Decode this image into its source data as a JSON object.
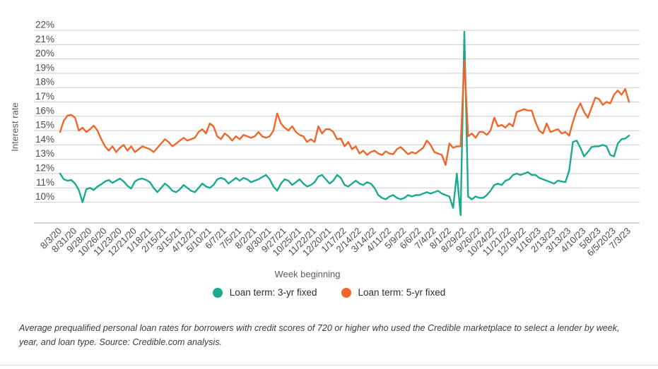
{
  "chart_data": {
    "type": "line",
    "title": "",
    "xlabel": "Week beginning",
    "ylabel": "Interest rate",
    "ylim": [
      10,
      22
    ],
    "y_tick_suffix": "%",
    "grid": "horizontal",
    "legend_position": "bottom",
    "x_tick_interval_weeks": 4,
    "x_tick_labels": [
      "8/3/20",
      "8/31/20",
      "9/28/20",
      "10/26/20",
      "11/23/20",
      "12/21/20",
      "1/18/21",
      "2/15/21",
      "3/15/21",
      "4/12/21",
      "5/10/21",
      "6/7/21",
      "7/5/21",
      "8/2/21",
      "8/30/21",
      "9/27/21",
      "10/25/21",
      "11/22/21",
      "12/20/21",
      "1/17/22",
      "2/14/22",
      "3/14/22",
      "4/11/22",
      "5/9/22",
      "6/6/22",
      "7/4/22",
      "8/1/22",
      "8/29/22",
      "9/26/22",
      "10/24/22",
      "11/21/22",
      "12/19/22",
      "1/16/23",
      "2/13/23",
      "3/13/23",
      "4/10/23",
      "5/8/23",
      "6/5/2023",
      "7/3/23"
    ],
    "series": [
      {
        "name": "Loan term: 3-yr fixed",
        "color": "#1aaa8f",
        "values": [
          12.0,
          11.6,
          11.5,
          11.55,
          11.3,
          10.85,
          10.0,
          10.9,
          11.0,
          10.85,
          11.1,
          11.25,
          11.45,
          11.55,
          11.35,
          11.5,
          11.65,
          11.45,
          11.15,
          10.95,
          11.45,
          11.6,
          11.65,
          11.55,
          11.4,
          11.0,
          10.7,
          11.0,
          11.3,
          11.1,
          10.8,
          10.7,
          10.9,
          11.2,
          11.0,
          10.8,
          10.7,
          11.0,
          11.3,
          11.1,
          11.0,
          11.2,
          11.6,
          11.7,
          11.6,
          11.3,
          11.5,
          11.7,
          11.5,
          11.7,
          11.6,
          11.4,
          11.5,
          11.6,
          11.75,
          11.9,
          11.6,
          11.1,
          10.8,
          11.3,
          11.6,
          11.5,
          11.2,
          11.4,
          11.6,
          11.3,
          11.1,
          11.2,
          11.4,
          11.8,
          11.9,
          11.6,
          11.3,
          11.5,
          11.9,
          11.7,
          11.2,
          11.1,
          11.3,
          11.5,
          11.3,
          11.2,
          11.4,
          11.3,
          11.0,
          10.5,
          10.3,
          10.2,
          10.4,
          10.5,
          10.3,
          10.2,
          10.3,
          10.5,
          10.4,
          10.5,
          10.5,
          10.6,
          10.7,
          10.6,
          10.7,
          10.8,
          10.6,
          10.5,
          10.4,
          9.6,
          12.0,
          9.1,
          21.9,
          10.4,
          10.2,
          10.4,
          10.3,
          10.3,
          10.5,
          10.8,
          11.2,
          11.3,
          11.2,
          11.5,
          11.6,
          11.9,
          12.0,
          11.9,
          12.0,
          12.1,
          11.9,
          11.9,
          11.7,
          11.6,
          11.5,
          11.4,
          11.3,
          11.5,
          11.45,
          11.4,
          12.2,
          14.2,
          14.3,
          13.8,
          13.2,
          13.5,
          13.85,
          13.9,
          13.9,
          14.0,
          13.9,
          13.3,
          13.2,
          14.1,
          14.4,
          14.45,
          14.65
        ]
      },
      {
        "name": "Loan term: 5-yr fixed",
        "color": "#f0662a",
        "values": [
          14.9,
          15.7,
          16.05,
          16.1,
          15.9,
          15.0,
          15.2,
          14.9,
          15.1,
          15.35,
          15.0,
          14.4,
          13.9,
          13.6,
          13.9,
          13.5,
          13.8,
          14.0,
          13.6,
          13.9,
          13.5,
          13.7,
          13.9,
          13.8,
          13.7,
          13.5,
          13.8,
          14.1,
          14.4,
          14.2,
          13.9,
          14.1,
          14.3,
          14.5,
          14.3,
          14.4,
          14.5,
          14.9,
          15.1,
          14.8,
          15.5,
          15.3,
          14.6,
          14.4,
          14.8,
          14.6,
          14.3,
          14.6,
          14.4,
          14.7,
          14.6,
          14.5,
          14.6,
          14.9,
          14.6,
          14.5,
          14.6,
          15.0,
          16.2,
          15.5,
          15.2,
          15.0,
          15.3,
          14.9,
          14.7,
          14.6,
          14.2,
          14.4,
          14.2,
          15.3,
          14.8,
          15.1,
          15.1,
          14.9,
          14.4,
          14.45,
          13.9,
          14.2,
          13.7,
          13.9,
          13.4,
          13.6,
          13.3,
          13.5,
          13.6,
          13.4,
          13.3,
          13.55,
          13.4,
          13.35,
          13.7,
          13.85,
          13.6,
          13.35,
          13.5,
          13.4,
          13.6,
          13.8,
          14.3,
          14.0,
          13.5,
          13.4,
          13.3,
          12.6,
          14.1,
          13.8,
          13.9,
          13.9,
          19.9,
          14.6,
          14.8,
          14.5,
          14.9,
          14.9,
          14.7,
          15.0,
          15.9,
          15.3,
          15.4,
          15.2,
          15.5,
          15.3,
          16.3,
          16.4,
          16.5,
          16.4,
          16.4,
          15.6,
          15.0,
          14.8,
          15.5,
          14.9,
          15.0,
          15.1,
          14.8,
          14.9,
          14.65,
          15.6,
          16.4,
          16.9,
          16.3,
          15.9,
          16.6,
          17.3,
          17.2,
          16.8,
          17.0,
          16.9,
          17.5,
          17.8,
          17.5,
          17.9,
          17.0
        ]
      }
    ]
  },
  "footnote": {
    "text": "Average prequalified personal loan rates for borrowers with credit scores of 720 or higher who used the Credible marketplace to select a lender by week, year, and loan type. Source: Credible.com analysis."
  },
  "colors": {
    "gridline": "#cccccc",
    "axis_line": "#a3a3a3",
    "tick_text": "#4a4a4a"
  }
}
